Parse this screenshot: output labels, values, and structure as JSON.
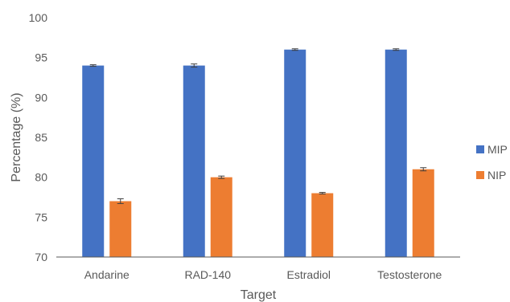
{
  "chart_data": {
    "type": "bar",
    "categories": [
      "Andarine",
      "RAD-140",
      "Estradiol",
      "Testosterone"
    ],
    "series": [
      {
        "name": "MIP",
        "color": "#4472C4",
        "values": [
          94,
          94,
          96,
          96
        ],
        "errors": [
          0.1,
          0.2,
          0.1,
          0.1
        ]
      },
      {
        "name": "NIP",
        "color": "#ED7D31",
        "values": [
          77,
          80,
          78,
          81
        ],
        "errors": [
          0.3,
          0.15,
          0.1,
          0.2
        ]
      }
    ],
    "title": "",
    "xlabel": "Target",
    "ylabel": "Percentage (%)",
    "ylim": [
      70,
      100
    ],
    "yticks": [
      70,
      75,
      80,
      85,
      90,
      95,
      100
    ],
    "grid": false,
    "legend": "right"
  }
}
